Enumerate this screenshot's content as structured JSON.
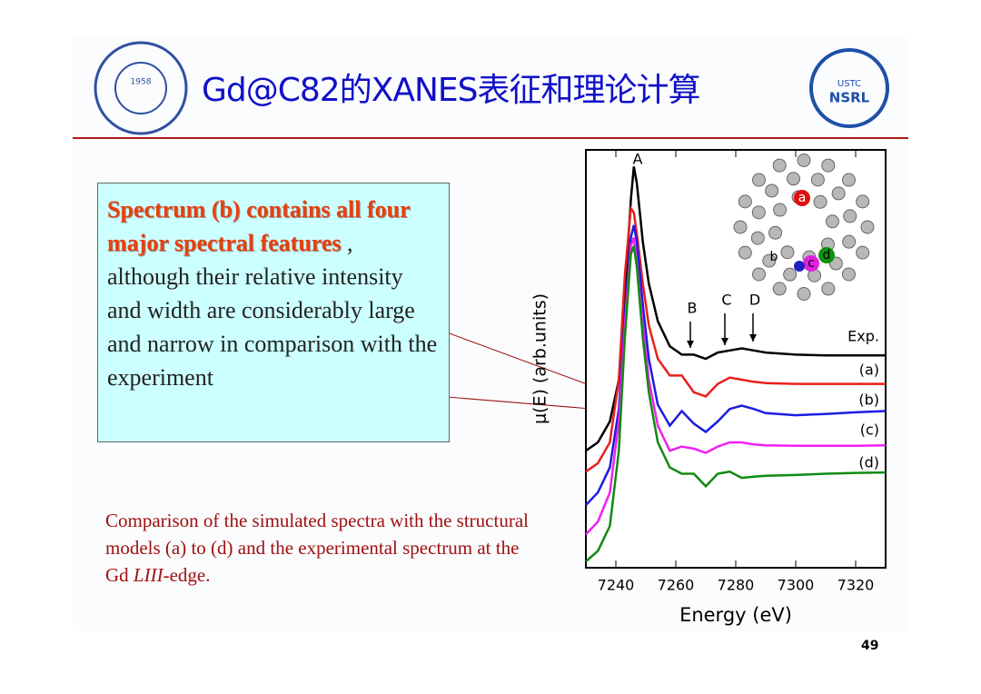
{
  "slide": {
    "title": "Gd@C82的XANES表征和理论计算",
    "logo_left_year": "1958",
    "logo_right_top": "USTC",
    "logo_right_bottom": "NSRL",
    "page_number": "49"
  },
  "callout": {
    "bold": "Spectrum (b) contains all four major spectral features",
    "text": " , although their relative intensity and width are considerably large and narrow in comparison with the experiment"
  },
  "caption": {
    "before": "Comparison of the simulated spectra with the structural models (a) to (d) and the experimental spectrum at the Gd ",
    "italic": "LIII",
    "after": "-edge."
  },
  "chart_data": {
    "type": "line",
    "xlabel": "Energy (eV)",
    "ylabel": "μ(E) (arb.units)",
    "x": [
      7230,
      7234,
      7238,
      7241,
      7243,
      7245,
      7246,
      7247,
      7249,
      7251,
      7254,
      7258,
      7262,
      7266,
      7270,
      7274,
      7278,
      7282,
      7286,
      7290,
      7300,
      7310,
      7320,
      7330
    ],
    "xlim": [
      7230,
      7330
    ],
    "xticks": [
      7240,
      7260,
      7280,
      7300,
      7320
    ],
    "ylim": [
      0,
      10
    ],
    "feature_labels": [
      "A",
      "B",
      "C",
      "D"
    ],
    "inset_labels": [
      "a",
      "b",
      "c",
      "d"
    ],
    "series": [
      {
        "name": "Exp.",
        "color": "#000000",
        "values": [
          2.8,
          3.0,
          3.5,
          4.5,
          6.5,
          8.8,
          9.6,
          9.2,
          7.8,
          6.8,
          5.9,
          5.3,
          5.1,
          5.1,
          5.0,
          5.15,
          5.2,
          5.25,
          5.2,
          5.15,
          5.1,
          5.08,
          5.08,
          5.08
        ]
      },
      {
        "name": "(a)",
        "color": "#e8201c",
        "values": [
          2.3,
          2.5,
          3.0,
          4.5,
          7.0,
          8.6,
          8.5,
          8.0,
          6.8,
          5.8,
          5.0,
          4.6,
          4.6,
          4.2,
          4.1,
          4.4,
          4.55,
          4.5,
          4.45,
          4.42,
          4.4,
          4.4,
          4.4,
          4.4
        ]
      },
      {
        "name": "(b)",
        "color": "#1c1ce0",
        "values": [
          1.5,
          1.8,
          2.4,
          3.8,
          6.0,
          7.9,
          8.2,
          7.8,
          6.3,
          5.0,
          3.9,
          3.4,
          3.75,
          3.45,
          3.25,
          3.5,
          3.8,
          3.88,
          3.8,
          3.7,
          3.65,
          3.68,
          3.72,
          3.75
        ]
      },
      {
        "name": "(c)",
        "color": "#f020f0",
        "values": [
          0.8,
          1.1,
          1.8,
          3.5,
          5.8,
          7.7,
          7.9,
          7.3,
          5.8,
          4.5,
          3.4,
          2.8,
          2.9,
          2.85,
          2.75,
          2.9,
          3.0,
          3.0,
          2.95,
          2.93,
          2.92,
          2.92,
          2.92,
          2.93
        ]
      },
      {
        "name": "(d)",
        "color": "#108a10",
        "values": [
          0.15,
          0.4,
          1.0,
          2.8,
          5.5,
          7.5,
          7.7,
          7.2,
          5.5,
          4.2,
          3.0,
          2.4,
          2.25,
          2.25,
          1.95,
          2.25,
          2.3,
          2.15,
          2.18,
          2.2,
          2.22,
          2.25,
          2.27,
          2.28
        ]
      }
    ]
  }
}
